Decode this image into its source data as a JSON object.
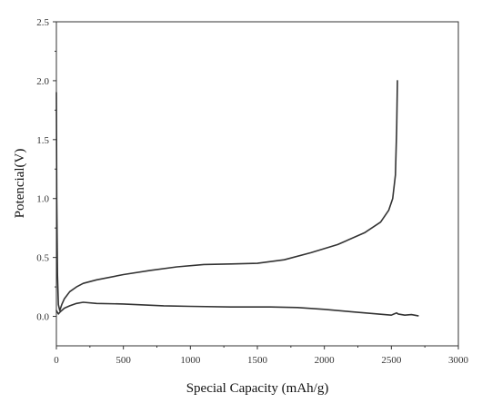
{
  "chart_data": {
    "type": "line",
    "title": "",
    "xlabel": "Special Capacity (mAh/g)",
    "ylabel": "Potencial(V)",
    "xlim": [
      0,
      3000
    ],
    "ylim": [
      -0.25,
      2.5
    ],
    "x_ticks": [
      0,
      500,
      1000,
      1500,
      2000,
      2500,
      3000
    ],
    "y_ticks": [
      0.0,
      0.5,
      1.0,
      1.5,
      2.0,
      2.5
    ],
    "x_tick_labels": [
      "0",
      "500",
      "1000",
      "1500",
      "2000",
      "2500",
      "3000"
    ],
    "y_tick_labels": [
      "0.0",
      "0.5",
      "1.0",
      "1.5",
      "2.0",
      "2.5"
    ],
    "grid": false,
    "legend": "none",
    "line_color": "#333333",
    "series": [
      {
        "x": [
          0,
          3,
          8,
          15,
          25,
          40,
          60,
          100,
          150,
          200,
          300,
          500,
          700,
          900,
          1100,
          1300,
          1500,
          1700,
          1900,
          2100,
          2300,
          2420,
          2480,
          2510,
          2530,
          2540,
          2545
        ],
        "y": [
          1.9,
          1.0,
          0.35,
          0.1,
          0.05,
          0.1,
          0.15,
          0.21,
          0.25,
          0.28,
          0.31,
          0.355,
          0.39,
          0.42,
          0.44,
          0.445,
          0.45,
          0.48,
          0.54,
          0.61,
          0.71,
          0.8,
          0.9,
          1.0,
          1.2,
          1.6,
          2.0
        ]
      },
      {
        "x": [
          0,
          15,
          30,
          60,
          100,
          150,
          200,
          300,
          500,
          800,
          1000,
          1300,
          1600,
          1800,
          2000,
          2200,
          2400,
          2500,
          2520,
          2540,
          2550,
          2600,
          2650,
          2700
        ],
        "y": [
          0.05,
          0.02,
          0.04,
          0.07,
          0.09,
          0.11,
          0.12,
          0.11,
          0.105,
          0.09,
          0.085,
          0.08,
          0.08,
          0.075,
          0.06,
          0.04,
          0.02,
          0.01,
          0.02,
          0.03,
          0.02,
          0.01,
          0.015,
          0.005
        ]
      }
    ]
  }
}
